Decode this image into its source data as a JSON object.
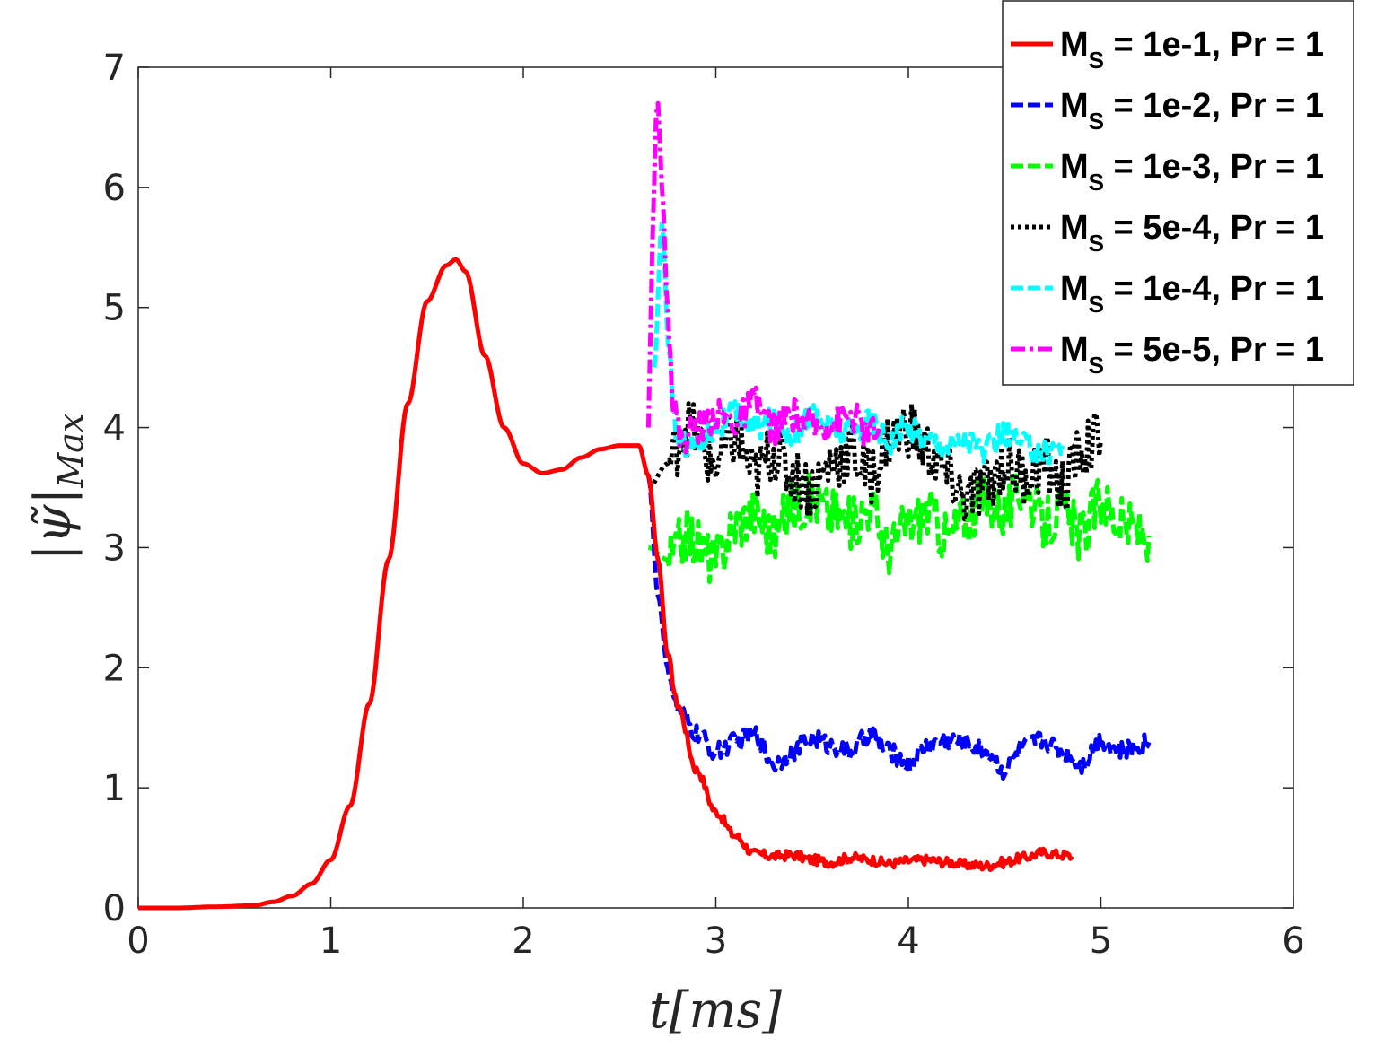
{
  "chart_data": {
    "type": "line",
    "xlabel": "t[ms]",
    "ylabel": "|ψ̃|",
    "ylabel_sub": "Max",
    "xlim": [
      0,
      6
    ],
    "ylim": [
      0,
      7
    ],
    "xticks": [
      0,
      1,
      2,
      3,
      4,
      5,
      6
    ],
    "yticks": [
      0,
      1,
      2,
      3,
      4,
      5,
      6,
      7
    ],
    "grid": false,
    "legend_position": "top-right",
    "series": [
      {
        "name": "M_S = 1e-1, Pr = 1",
        "label_main": "M",
        "label_sub": "S",
        "label_rest": " = 1e-1, Pr = 1",
        "color": "#ff0000",
        "style": "solid",
        "x": [
          0,
          0.2,
          0.4,
          0.6,
          0.7,
          0.8,
          0.9,
          1.0,
          1.1,
          1.2,
          1.3,
          1.4,
          1.5,
          1.6,
          1.65,
          1.7,
          1.8,
          1.9,
          2.0,
          2.1,
          2.2,
          2.3,
          2.4,
          2.5,
          2.6,
          2.65,
          2.7,
          2.75,
          2.8,
          2.9,
          3.0,
          3.1,
          3.2,
          3.3,
          3.4,
          3.5,
          3.6,
          3.7,
          3.8,
          3.9,
          4.0,
          4.1,
          4.2,
          4.3,
          4.4,
          4.5,
          4.6,
          4.7,
          4.8,
          4.85
        ],
        "y": [
          0.0,
          0.0,
          0.01,
          0.02,
          0.05,
          0.1,
          0.2,
          0.4,
          0.85,
          1.7,
          2.9,
          4.2,
          5.05,
          5.35,
          5.4,
          5.3,
          4.6,
          4.0,
          3.7,
          3.62,
          3.65,
          3.75,
          3.82,
          3.85,
          3.85,
          3.6,
          2.9,
          2.1,
          1.7,
          1.15,
          0.8,
          0.6,
          0.45,
          0.43,
          0.44,
          0.4,
          0.38,
          0.42,
          0.4,
          0.37,
          0.39,
          0.4,
          0.38,
          0.36,
          0.35,
          0.38,
          0.42,
          0.46,
          0.44,
          0.43
        ],
        "noise": 0.04
      },
      {
        "name": "M_S = 1e-2, Pr = 1",
        "label_main": "M",
        "label_sub": "S",
        "label_rest": " = 1e-2, Pr = 1",
        "color": "#0000ff",
        "style": "dashed",
        "x": [
          2.65,
          2.7,
          2.75,
          2.8,
          2.9,
          3.0,
          3.1,
          3.2,
          3.3,
          3.4,
          3.5,
          3.6,
          3.7,
          3.8,
          3.9,
          4.0,
          4.1,
          4.2,
          4.3,
          4.4,
          4.5,
          4.6,
          4.7,
          4.8,
          4.9,
          5.0,
          5.1,
          5.25
        ],
        "y": [
          3.6,
          2.6,
          2.0,
          1.65,
          1.45,
          1.3,
          1.38,
          1.45,
          1.2,
          1.3,
          1.42,
          1.35,
          1.3,
          1.45,
          1.3,
          1.2,
          1.35,
          1.4,
          1.38,
          1.3,
          1.15,
          1.35,
          1.4,
          1.3,
          1.2,
          1.4,
          1.3,
          1.38
        ],
        "noise": 0.08
      },
      {
        "name": "M_S = 1e-3, Pr = 1",
        "label_main": "M",
        "label_sub": "S",
        "label_rest": " = 1e-3, Pr = 1",
        "color": "#00ff00",
        "style": "dashed",
        "x": [
          2.65,
          2.75,
          2.85,
          3.0,
          3.1,
          3.2,
          3.3,
          3.4,
          3.5,
          3.6,
          3.7,
          3.8,
          3.9,
          4.0,
          4.1,
          4.2,
          4.3,
          4.4,
          4.5,
          4.6,
          4.7,
          4.8,
          4.9,
          5.0,
          5.1,
          5.25
        ],
        "y": [
          3.0,
          2.9,
          3.1,
          2.9,
          3.2,
          3.3,
          3.1,
          3.35,
          3.4,
          3.3,
          3.2,
          3.35,
          3.0,
          3.2,
          3.3,
          3.1,
          3.25,
          3.4,
          3.3,
          3.5,
          3.2,
          3.3,
          3.1,
          3.4,
          3.2,
          3.1
        ],
        "noise": 0.22
      },
      {
        "name": "M_S = 5e-4, Pr = 1",
        "label_main": "M",
        "label_sub": "S",
        "label_rest": " = 5e-4, Pr = 1",
        "color": "#000000",
        "style": "dotted",
        "x": [
          2.65,
          2.75,
          2.85,
          3.0,
          3.1,
          3.2,
          3.3,
          3.4,
          3.5,
          3.6,
          3.7,
          3.8,
          3.9,
          4.0,
          4.1,
          4.2,
          4.3,
          4.4,
          4.5,
          4.6,
          4.7,
          4.8,
          4.9,
          5.0
        ],
        "y": [
          3.5,
          3.7,
          4.0,
          3.7,
          3.9,
          3.6,
          3.8,
          3.6,
          3.5,
          3.7,
          3.8,
          3.6,
          3.9,
          4.0,
          3.8,
          3.6,
          3.4,
          3.5,
          3.7,
          3.6,
          3.7,
          3.5,
          3.8,
          3.9
        ],
        "noise": 0.25
      },
      {
        "name": "M_S = 1e-4, Pr = 1",
        "label_main": "M",
        "label_sub": "S",
        "label_rest": " = 1e-4, Pr = 1",
        "color": "#00ffff",
        "style": "dashed",
        "x": [
          2.68,
          2.72,
          2.76,
          2.8,
          2.9,
          3.0,
          3.1,
          3.2,
          3.3,
          3.4,
          3.5,
          3.6,
          3.7,
          3.8,
          3.9,
          4.0,
          4.1,
          4.2,
          4.3,
          4.4,
          4.5,
          4.6,
          4.7,
          4.8
        ],
        "y": [
          4.5,
          5.7,
          4.5,
          3.9,
          3.85,
          4.0,
          4.1,
          4.0,
          4.05,
          3.95,
          4.1,
          4.0,
          3.95,
          4.05,
          3.9,
          4.0,
          3.9,
          3.85,
          3.9,
          3.8,
          3.95,
          3.85,
          3.8,
          3.85
        ],
        "noise": 0.12
      },
      {
        "name": "M_S = 5e-5, Pr = 1",
        "label_main": "M",
        "label_sub": "S",
        "label_rest": " = 5e-5, Pr = 1",
        "color": "#ff00ff",
        "style": "dashdot",
        "x": [
          2.65,
          2.67,
          2.69,
          2.7,
          2.72,
          2.75,
          2.78,
          2.82,
          2.9,
          3.0,
          3.1,
          3.2,
          3.3,
          3.4,
          3.5,
          3.6,
          3.7,
          3.8,
          3.85
        ],
        "y": [
          4.0,
          5.5,
          6.6,
          6.7,
          6.0,
          5.0,
          4.2,
          3.9,
          4.0,
          4.1,
          4.05,
          4.2,
          4.0,
          4.1,
          4.0,
          4.05,
          4.1,
          3.95,
          4.0
        ],
        "noise": 0.14
      }
    ]
  }
}
